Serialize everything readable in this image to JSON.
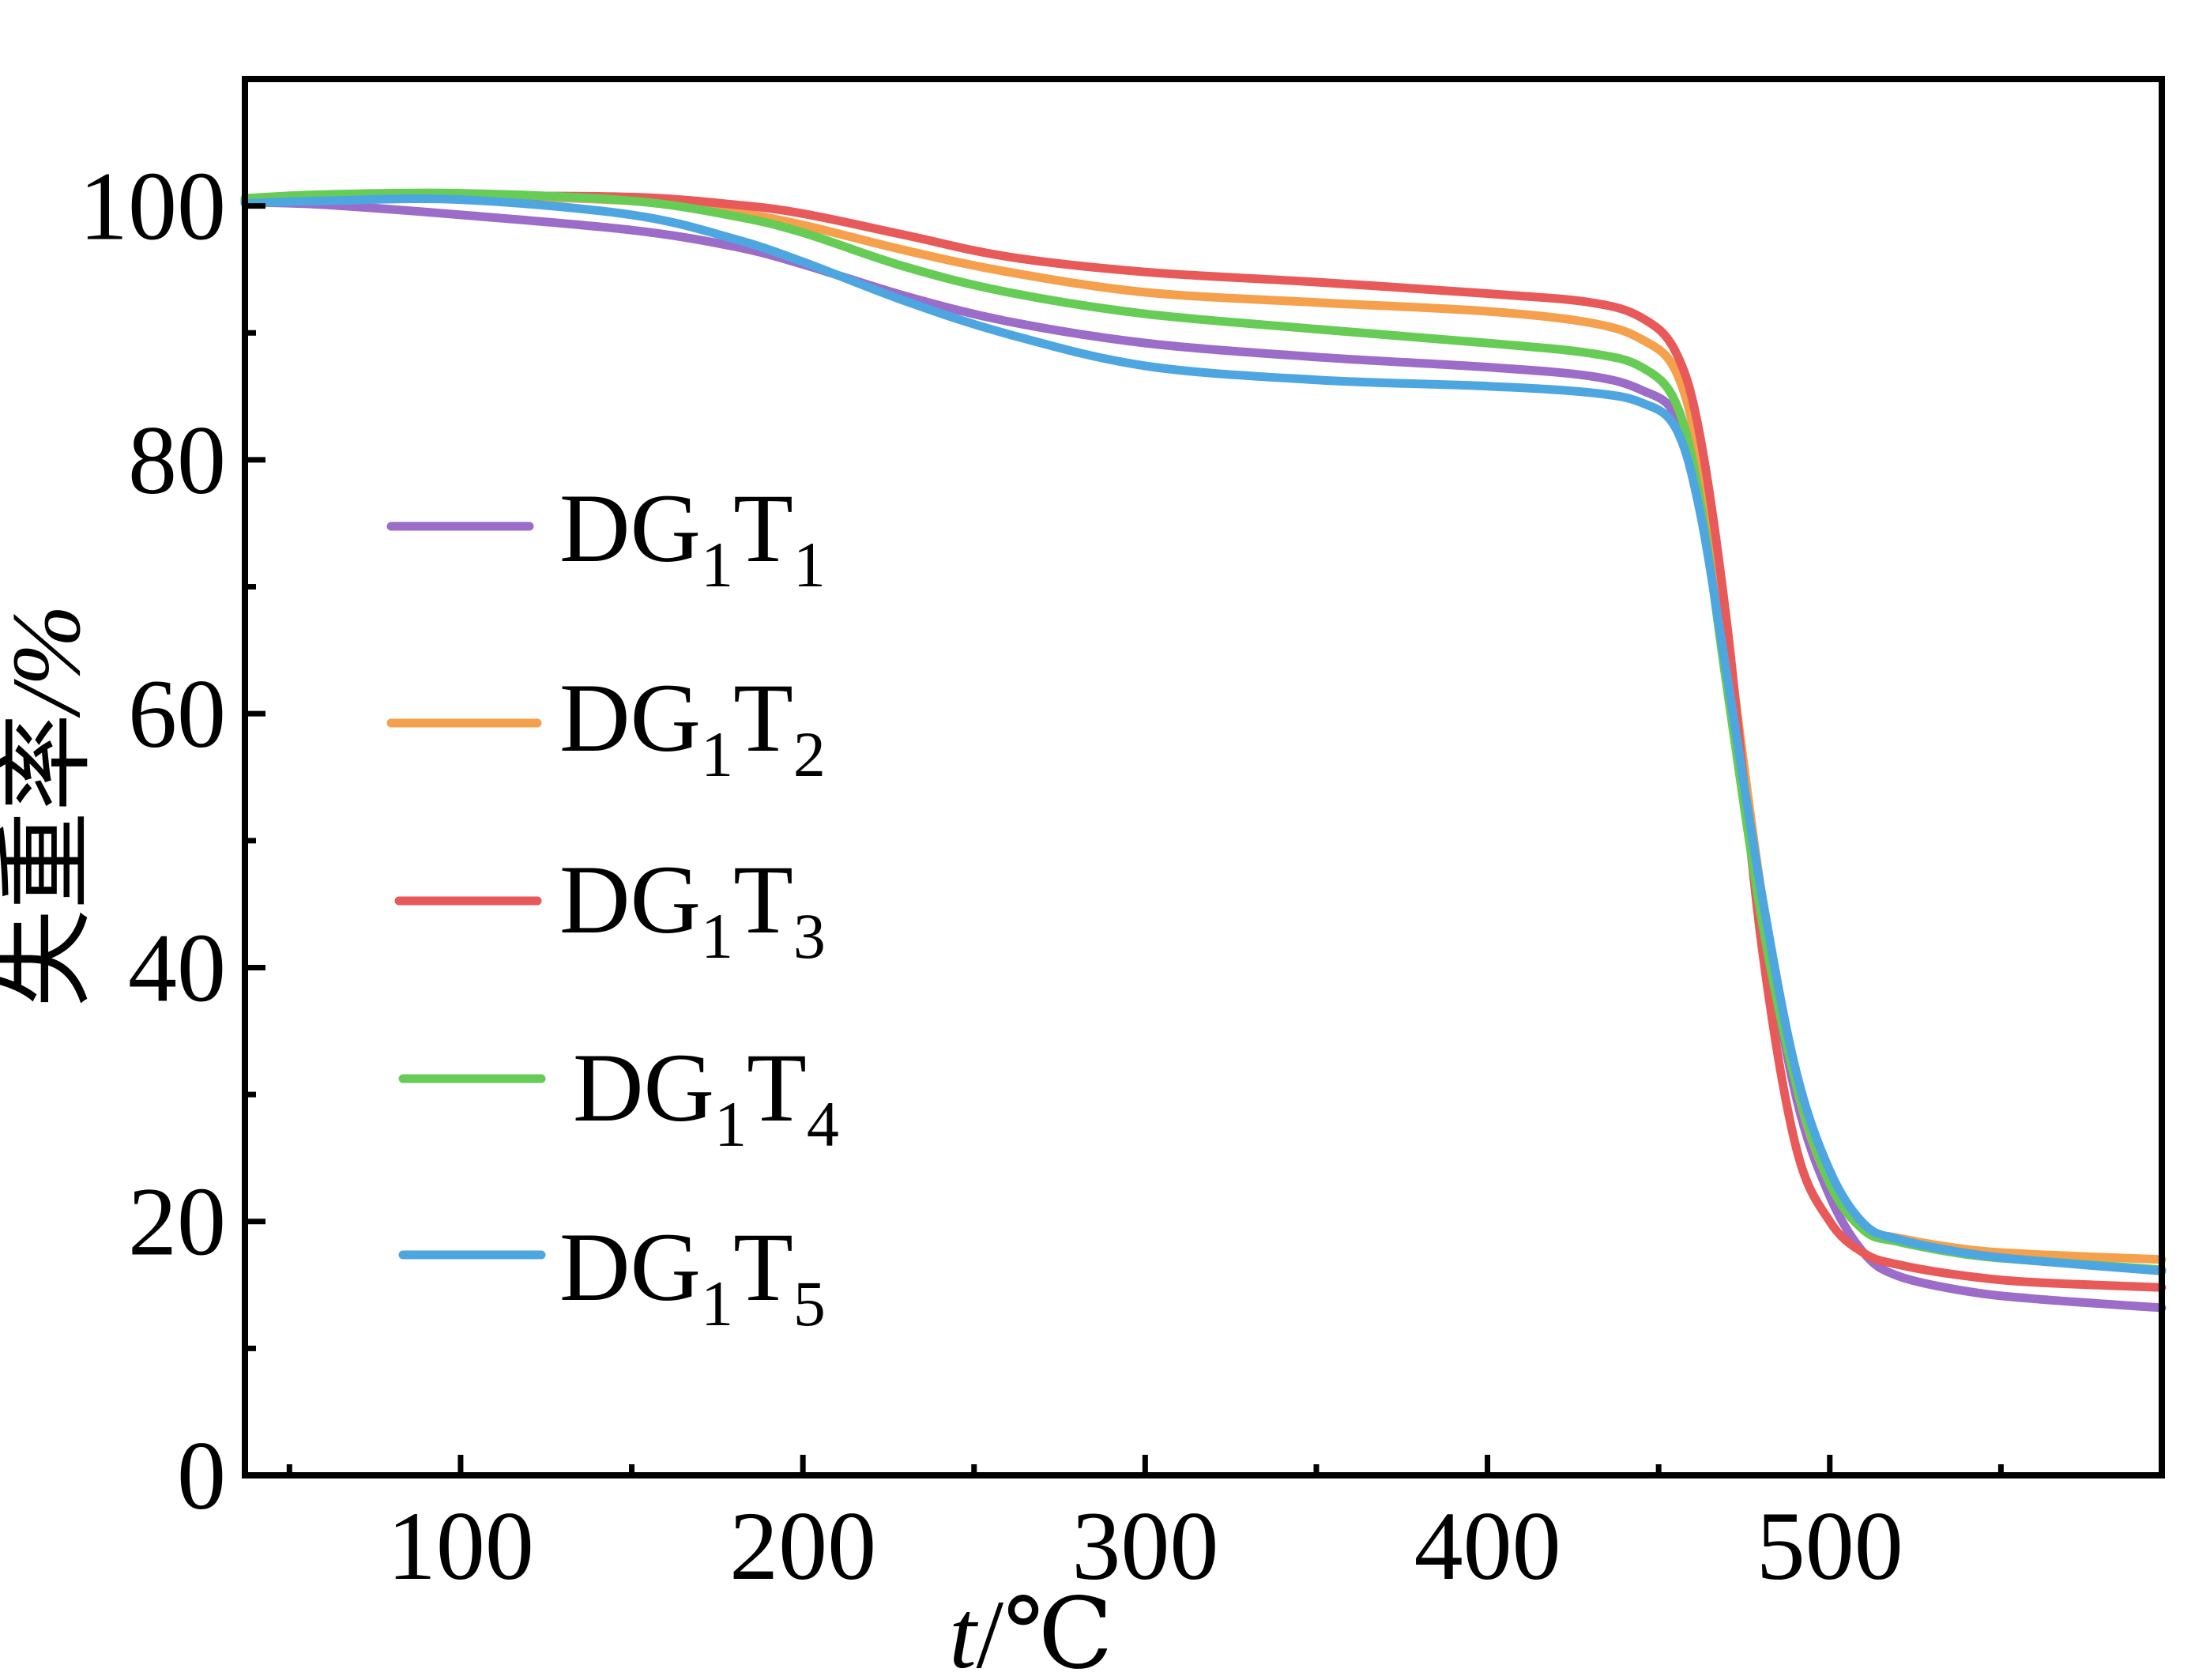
{
  "chart_data": {
    "type": "line",
    "xlabel": {
      "italic": "t",
      "rest": "/℃"
    },
    "ylabel": {
      "text": "失重率",
      "unit": "/%"
    },
    "xlim": [
      37,
      597
    ],
    "ylim": [
      0,
      110
    ],
    "xticks": [
      "100",
      "200",
      "300",
      "400",
      "500"
    ],
    "yticks": [
      "0",
      "20",
      "40",
      "60",
      "80",
      "100"
    ],
    "grid": false,
    "legend_position": "center-left",
    "series": [
      {
        "name": "DG1T1",
        "label_main": "DG",
        "label_sub1": "1",
        "label_t": "T",
        "label_sub2": "1",
        "color": "#9b6cc8",
        "x": [
          37,
          60,
          100,
          150,
          180,
          200,
          230,
          260,
          300,
          350,
          400,
          430,
          445,
          455,
          462,
          470,
          480,
          490,
          500,
          510,
          520,
          540,
          560,
          597
        ],
        "y": [
          100.3,
          100.1,
          99.3,
          98.1,
          96.8,
          95.4,
          92.9,
          90.9,
          89.2,
          88.1,
          87.3,
          86.6,
          85.5,
          83.5,
          77,
          64,
          45,
          30,
          22,
          17.5,
          15.7,
          14.5,
          13.9,
          13.2
        ]
      },
      {
        "name": "DG1T2",
        "label_main": "DG",
        "label_sub1": "1",
        "label_t": "T",
        "label_sub2": "2",
        "color": "#f5a04c",
        "x": [
          37,
          60,
          100,
          150,
          180,
          200,
          230,
          260,
          300,
          350,
          400,
          430,
          445,
          455,
          462,
          470,
          480,
          490,
          500,
          510,
          520,
          540,
          560,
          597
        ],
        "y": [
          100.5,
          100.8,
          100.8,
          100.4,
          99.5,
          98.5,
          96.5,
          94.8,
          93.2,
          92.4,
          91.7,
          90.8,
          89.5,
          87,
          80,
          66,
          46,
          31,
          23,
          19.5,
          18.7,
          17.8,
          17.4,
          17
        ]
      },
      {
        "name": "DG1T3",
        "label_main": "DG",
        "label_sub1": "1",
        "label_t": "T",
        "label_sub2": "3",
        "color": "#e85a5a",
        "x": [
          37,
          60,
          100,
          150,
          180,
          200,
          230,
          260,
          300,
          350,
          400,
          430,
          445,
          455,
          462,
          470,
          480,
          490,
          500,
          510,
          520,
          540,
          560,
          597
        ],
        "y": [
          100.5,
          100.8,
          100.8,
          100.7,
          100.1,
          99.4,
          97.7,
          96,
          94.8,
          94,
          93.1,
          92.4,
          91.2,
          88.5,
          82,
          67,
          42,
          26,
          20,
          17.5,
          16.6,
          15.7,
          15.2,
          14.8
        ]
      },
      {
        "name": "DG1T4",
        "label_main": "DG",
        "label_sub1": "1",
        "label_t": "T",
        "label_sub2": "4",
        "color": "#66cc55",
        "x": [
          37,
          60,
          100,
          150,
          180,
          200,
          230,
          260,
          300,
          350,
          400,
          430,
          445,
          455,
          462,
          470,
          480,
          490,
          500,
          510,
          520,
          540,
          560,
          597
        ],
        "y": [
          100.6,
          100.9,
          101,
          100.4,
          99.2,
          97.9,
          95.2,
          93.2,
          91.5,
          90.3,
          89.2,
          88.4,
          87.3,
          84.5,
          77,
          62,
          44,
          31,
          23,
          19.3,
          18.4,
          17.4,
          16.9,
          16.2
        ]
      },
      {
        "name": "DG1T5",
        "label_main": "DG",
        "label_sub1": "1",
        "label_t": "T",
        "label_sub2": "5",
        "color": "#4ea6e0",
        "x": [
          37,
          60,
          100,
          150,
          180,
          200,
          230,
          260,
          300,
          350,
          400,
          430,
          445,
          455,
          462,
          470,
          480,
          490,
          500,
          510,
          520,
          540,
          560,
          597
        ],
        "y": [
          100.2,
          100.4,
          100.5,
          99.3,
          97.4,
          95.6,
          92.5,
          89.9,
          87.4,
          86.3,
          85.8,
          85.3,
          84.5,
          82.5,
          76,
          63,
          46,
          32,
          24,
          19.8,
          18.6,
          17.5,
          16.9,
          16.1
        ]
      }
    ]
  }
}
